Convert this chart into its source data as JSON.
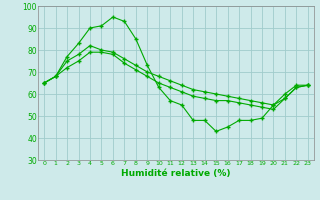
{
  "xlabel": "Humidité relative (%)",
  "bg_color": "#ceeaea",
  "grid_color": "#a0cccc",
  "line_color": "#00aa00",
  "xlim": [
    -0.5,
    23.5
  ],
  "ylim": [
    30,
    100
  ],
  "xticks": [
    0,
    1,
    2,
    3,
    4,
    5,
    6,
    7,
    8,
    9,
    10,
    11,
    12,
    13,
    14,
    15,
    16,
    17,
    18,
    19,
    20,
    21,
    22,
    23
  ],
  "yticks": [
    30,
    40,
    50,
    60,
    70,
    80,
    90,
    100
  ],
  "line1_x": [
    0,
    1,
    2,
    3,
    4,
    5,
    6,
    7,
    8,
    9,
    10,
    11,
    12,
    13,
    14,
    15,
    16,
    17,
    18,
    19,
    20,
    21,
    22,
    23
  ],
  "line1_y": [
    65,
    68,
    77,
    83,
    90,
    91,
    95,
    93,
    85,
    73,
    63,
    57,
    55,
    48,
    48,
    43,
    45,
    48,
    48,
    49,
    55,
    60,
    64,
    64
  ],
  "line2_x": [
    0,
    1,
    2,
    3,
    4,
    5,
    6,
    7,
    8,
    9,
    10,
    11,
    12,
    13,
    14,
    15,
    16,
    17,
    18,
    19,
    20,
    21,
    22,
    23
  ],
  "line2_y": [
    65,
    68,
    75,
    78,
    82,
    80,
    79,
    76,
    73,
    70,
    68,
    66,
    64,
    62,
    61,
    60,
    59,
    58,
    57,
    56,
    55,
    58,
    63,
    64
  ],
  "line3_x": [
    0,
    1,
    2,
    3,
    4,
    5,
    6,
    7,
    8,
    9,
    10,
    11,
    12,
    13,
    14,
    15,
    16,
    17,
    18,
    19,
    20,
    21,
    22,
    23
  ],
  "line3_y": [
    65,
    68,
    72,
    75,
    79,
    79,
    78,
    74,
    71,
    68,
    65,
    63,
    61,
    59,
    58,
    57,
    57,
    56,
    55,
    54,
    53,
    58,
    63,
    64
  ]
}
